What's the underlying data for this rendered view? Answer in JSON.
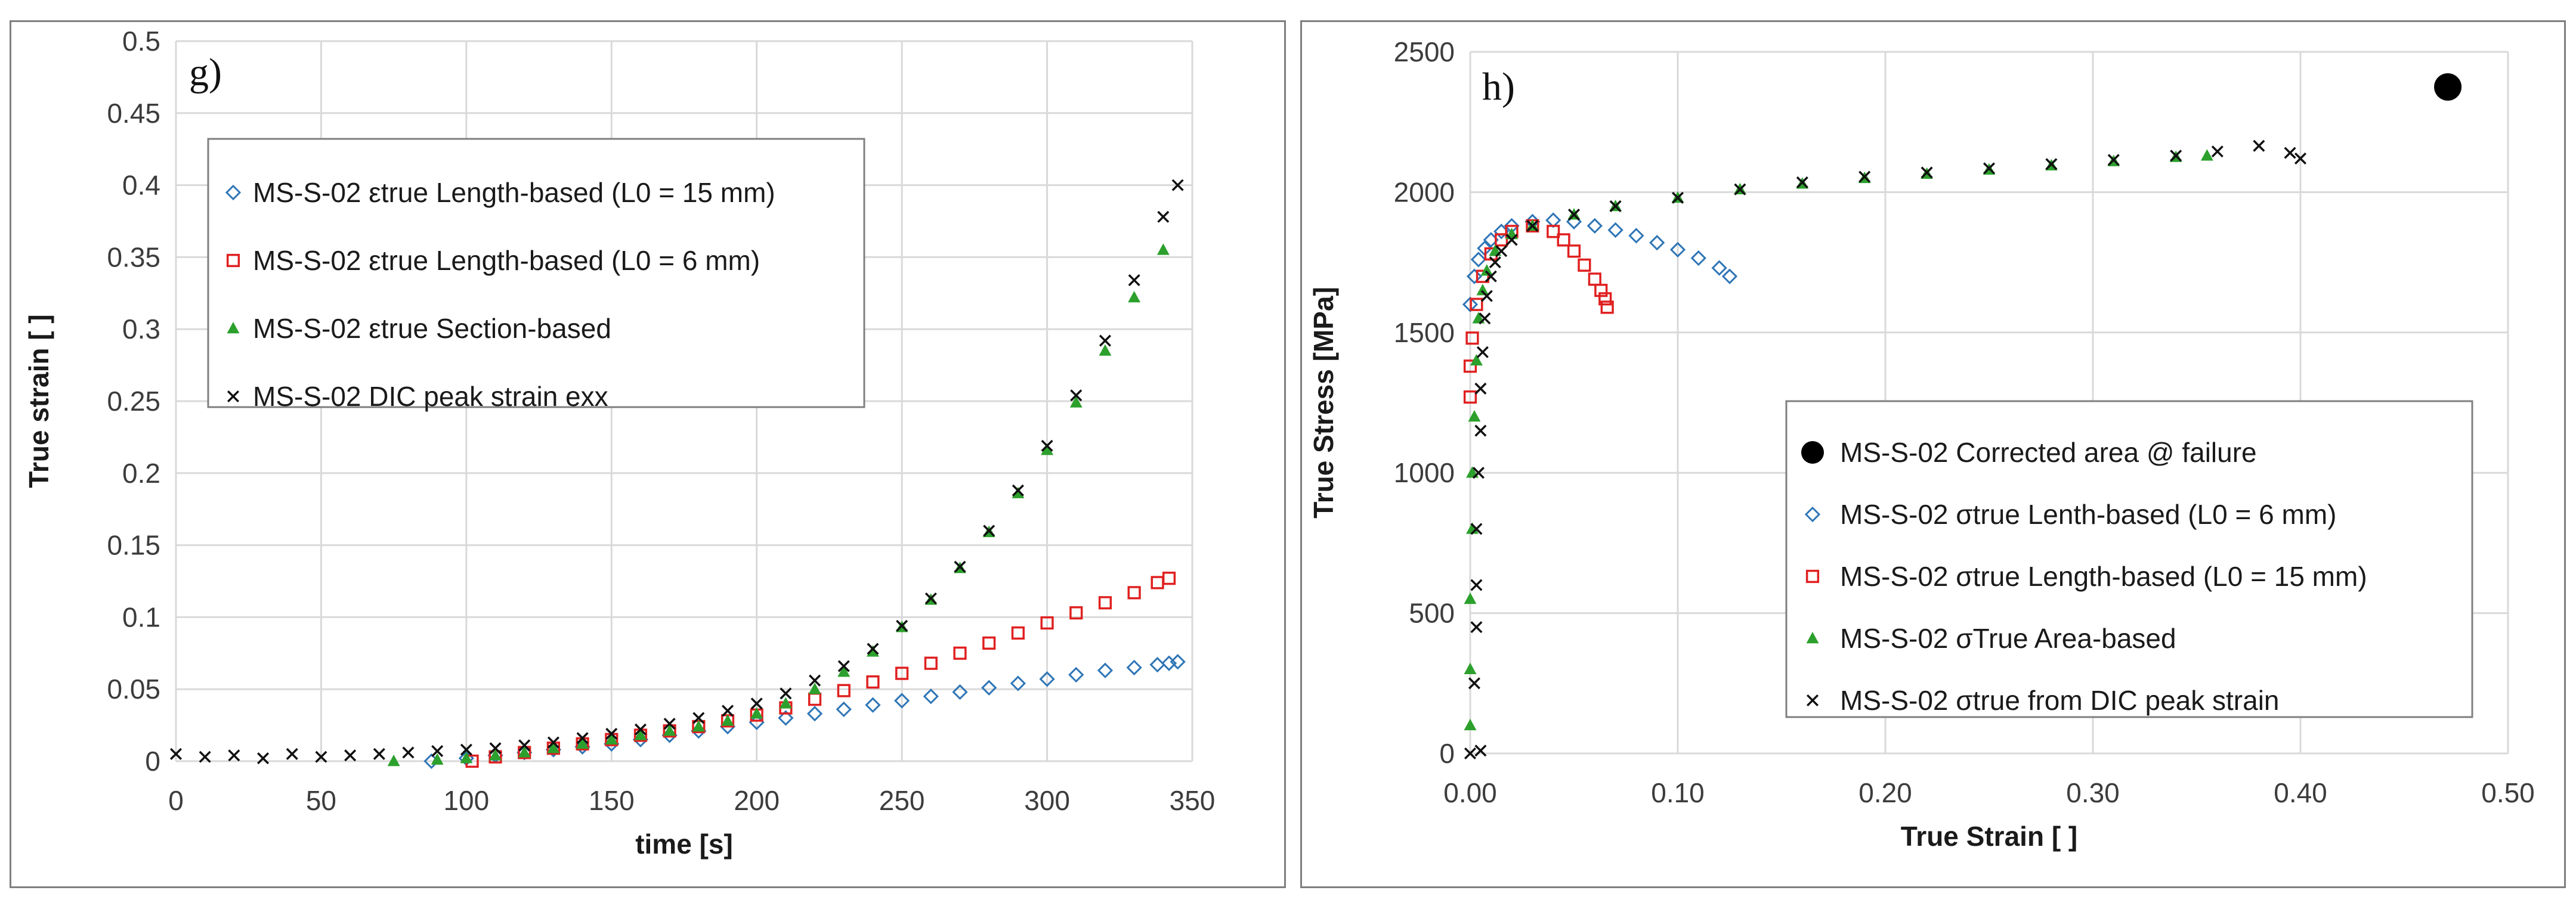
{
  "chart_data": [
    {
      "type": "scatter",
      "panel_label": "g)",
      "xlabel": "time [s]",
      "ylabel": "True strain [ ]",
      "xlim": [
        0,
        350
      ],
      "ylim": [
        0,
        0.5
      ],
      "x_ticks": [
        "0",
        "50",
        "100",
        "150",
        "200",
        "250",
        "300",
        "350"
      ],
      "y_ticks": [
        "0",
        "0.05",
        "0.1",
        "0.15",
        "0.2",
        "0.25",
        "0.3",
        "0.35",
        "0.4",
        "0.45",
        "0.5"
      ],
      "grid": true,
      "legend_position": "top-left",
      "series": [
        {
          "name": "MS-S-02  εtrue Length-based (L0 = 15 mm)",
          "marker": "diamond",
          "color": "#2e75b6",
          "x": [
            88,
            100,
            110,
            120,
            130,
            140,
            150,
            160,
            170,
            180,
            190,
            200,
            210,
            220,
            230,
            240,
            250,
            260,
            270,
            280,
            290,
            300,
            310,
            320,
            330,
            338,
            342,
            345
          ],
          "y": [
            0.0,
            0.002,
            0.004,
            0.006,
            0.008,
            0.01,
            0.012,
            0.015,
            0.018,
            0.021,
            0.024,
            0.027,
            0.03,
            0.033,
            0.036,
            0.039,
            0.042,
            0.045,
            0.048,
            0.051,
            0.054,
            0.057,
            0.06,
            0.063,
            0.065,
            0.067,
            0.068,
            0.069
          ]
        },
        {
          "name": "MS-S-02 εtrue Length-based (L0 = 6 mm)",
          "marker": "square",
          "color": "#e02020",
          "x": [
            102,
            110,
            120,
            130,
            140,
            150,
            160,
            170,
            180,
            190,
            200,
            210,
            220,
            230,
            240,
            250,
            260,
            270,
            280,
            290,
            300,
            310,
            320,
            330,
            338,
            342
          ],
          "y": [
            0.0,
            0.003,
            0.006,
            0.009,
            0.012,
            0.015,
            0.018,
            0.021,
            0.024,
            0.028,
            0.032,
            0.037,
            0.043,
            0.049,
            0.055,
            0.061,
            0.068,
            0.075,
            0.082,
            0.089,
            0.096,
            0.103,
            0.11,
            0.117,
            0.124,
            0.127
          ]
        },
        {
          "name": "MS-S-02  εtrue Section-based",
          "marker": "triangle",
          "color": "#2ca02c",
          "x": [
            75,
            90,
            100,
            110,
            120,
            130,
            140,
            150,
            160,
            170,
            180,
            190,
            200,
            210,
            220,
            230,
            240,
            250,
            260,
            270,
            280,
            290,
            300,
            310,
            320,
            330,
            340
          ],
          "y": [
            0.0,
            0.001,
            0.002,
            0.004,
            0.006,
            0.009,
            0.012,
            0.015,
            0.018,
            0.021,
            0.024,
            0.028,
            0.033,
            0.04,
            0.05,
            0.062,
            0.076,
            0.093,
            0.112,
            0.134,
            0.159,
            0.186,
            0.216,
            0.249,
            0.285,
            0.322,
            0.355
          ]
        },
        {
          "name": "MS-S-02 DIC peak strain exx",
          "marker": "cross",
          "color": "#111111",
          "x": [
            0,
            10,
            20,
            30,
            40,
            50,
            60,
            70,
            80,
            90,
            100,
            110,
            120,
            130,
            140,
            150,
            160,
            170,
            180,
            190,
            200,
            210,
            220,
            230,
            240,
            250,
            260,
            270,
            280,
            290,
            300,
            310,
            320,
            330,
            340,
            345
          ],
          "y": [
            0.005,
            0.003,
            0.004,
            0.002,
            0.005,
            0.003,
            0.004,
            0.005,
            0.006,
            0.007,
            0.008,
            0.009,
            0.011,
            0.013,
            0.016,
            0.019,
            0.022,
            0.026,
            0.03,
            0.035,
            0.04,
            0.047,
            0.056,
            0.066,
            0.078,
            0.094,
            0.113,
            0.135,
            0.16,
            0.188,
            0.219,
            0.254,
            0.292,
            0.334,
            0.378,
            0.4
          ]
        }
      ]
    },
    {
      "type": "scatter",
      "panel_label": "h)",
      "xlabel": "True Strain [  ]",
      "ylabel": "True Stress [MPa]",
      "xlim": [
        0,
        0.5
      ],
      "ylim": [
        0,
        2500
      ],
      "x_ticks": [
        "0.00",
        "0.10",
        "0.20",
        "0.30",
        "0.40",
        "0.50"
      ],
      "y_ticks": [
        "0",
        "500",
        "1000",
        "1500",
        "2000",
        "2500"
      ],
      "grid": true,
      "legend_position": "bottom-right",
      "series": [
        {
          "name": "MS-S-02 Corrected area @ failure",
          "marker": "circle",
          "color": "#000000",
          "x": [
            0.471
          ],
          "y": [
            2375
          ]
        },
        {
          "name": "MS-S-02  σtrue Lenth-based (L0 = 6 mm)",
          "marker": "diamond",
          "color": "#2e75b6",
          "x": [
            0.0,
            0.002,
            0.004,
            0.007,
            0.01,
            0.015,
            0.02,
            0.03,
            0.04,
            0.05,
            0.06,
            0.07,
            0.08,
            0.09,
            0.1,
            0.11,
            0.12,
            0.125
          ],
          "y": [
            1600,
            1700,
            1760,
            1800,
            1830,
            1860,
            1880,
            1895,
            1900,
            1895,
            1880,
            1865,
            1845,
            1820,
            1795,
            1765,
            1730,
            1700
          ]
        },
        {
          "name": "MS-S-02  σtrue Length-based (L0 = 15 mm)",
          "marker": "square",
          "color": "#e02020",
          "x": [
            0.0,
            0.0,
            0.001,
            0.003,
            0.006,
            0.01,
            0.015,
            0.02,
            0.03,
            0.04,
            0.045,
            0.05,
            0.055,
            0.06,
            0.063,
            0.065,
            0.066
          ],
          "y": [
            1270,
            1380,
            1480,
            1600,
            1700,
            1780,
            1830,
            1860,
            1880,
            1860,
            1830,
            1790,
            1740,
            1690,
            1650,
            1620,
            1590
          ]
        },
        {
          "name": "MS-S-02  σTrue Area-based",
          "marker": "triangle",
          "color": "#2ca02c",
          "x": [
            0.0,
            0.0,
            0.0,
            0.001,
            0.001,
            0.002,
            0.003,
            0.004,
            0.006,
            0.008,
            0.012,
            0.02,
            0.03,
            0.05,
            0.07,
            0.1,
            0.13,
            0.16,
            0.19,
            0.22,
            0.25,
            0.28,
            0.31,
            0.34,
            0.355
          ],
          "y": [
            100,
            300,
            550,
            800,
            1000,
            1200,
            1400,
            1550,
            1650,
            1720,
            1790,
            1850,
            1880,
            1920,
            1950,
            1980,
            2010,
            2030,
            2050,
            2065,
            2080,
            2095,
            2110,
            2125,
            2130
          ]
        },
        {
          "name": "MS-S-02 σtrue from DIC peak strain",
          "marker": "cross",
          "color": "#111111",
          "x": [
            0.0,
            0.005,
            0.002,
            0.003,
            0.003,
            0.003,
            0.004,
            0.005,
            0.005,
            0.006,
            0.007,
            0.008,
            0.01,
            0.012,
            0.015,
            0.02,
            0.03,
            0.05,
            0.07,
            0.1,
            0.13,
            0.16,
            0.19,
            0.22,
            0.25,
            0.28,
            0.31,
            0.34,
            0.36,
            0.38,
            0.395,
            0.4
          ],
          "y": [
            0,
            10,
            250,
            450,
            600,
            800,
            1000,
            1150,
            1300,
            1430,
            1550,
            1630,
            1700,
            1750,
            1790,
            1830,
            1880,
            1920,
            1950,
            1980,
            2010,
            2035,
            2055,
            2070,
            2085,
            2100,
            2115,
            2130,
            2145,
            2165,
            2140,
            2120
          ]
        }
      ]
    }
  ]
}
